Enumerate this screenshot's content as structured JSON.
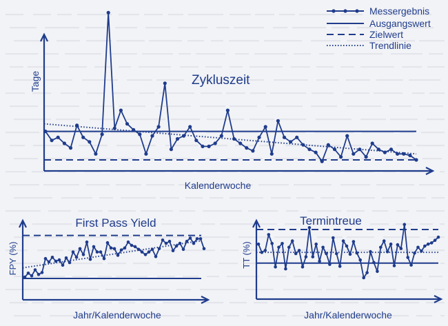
{
  "colors": {
    "ink": "#1f3c8c",
    "paper": "#f2f3f6",
    "bleed": "#c9ccd6"
  },
  "legend": {
    "items": [
      {
        "label": "Messergebnis",
        "style": "line-dots"
      },
      {
        "label": "Ausgangswert",
        "style": "solid"
      },
      {
        "label": "Zielwert",
        "style": "dashed"
      },
      {
        "label": "Trendlinie",
        "style": "dotted"
      }
    ]
  },
  "chart_data": [
    {
      "type": "line",
      "title": "Zykluszeit",
      "xlabel": "Kalenderwoche",
      "ylabel": "Tage",
      "ylim": [
        0,
        10
      ],
      "series": [
        {
          "name": "Messergebnis",
          "values": [
            1.9,
            1.3,
            1.5,
            1.1,
            0.8,
            2.3,
            1.5,
            1.2,
            0.4,
            1.7,
            9.8,
            2.1,
            3.3,
            2.4,
            2.0,
            1.7,
            0.4,
            1.6,
            2.2,
            5.1,
            0.7,
            1.4,
            1.6,
            2.2,
            1.3,
            0.9,
            0.9,
            1.1,
            1.6,
            3.3,
            1.4,
            1.1,
            0.8,
            0.6,
            1.5,
            2.2,
            0.4,
            2.6,
            1.5,
            1.2,
            1.5,
            1.0,
            0.7,
            0.5,
            -0.1,
            1.0,
            0.7,
            0.2,
            1.6,
            0.4,
            0.7,
            0.2,
            1.1,
            0.7,
            0.5,
            0.7,
            0.4,
            0.4,
            0.3,
            0.0
          ]
        },
        {
          "name": "Ausgangswert",
          "values": [
            1.9,
            1.9
          ]
        },
        {
          "name": "Zielwert",
          "values": [
            0.0,
            0.0
          ]
        },
        {
          "name": "Trendlinie",
          "values": [
            2.4,
            0.4
          ]
        }
      ]
    },
    {
      "type": "line",
      "title": "First Pass Yield",
      "xlabel": "Jahr/Kalenderwoche",
      "ylabel": "FPY (%)",
      "ylim": [
        0,
        10
      ],
      "series": [
        {
          "name": "Messergebnis",
          "values": [
            0.2,
            0.8,
            0.4,
            1.3,
            0.6,
            0.9,
            3.0,
            2.5,
            3.2,
            2.6,
            2.8,
            2.0,
            3.1,
            2.4,
            4.0,
            3.2,
            4.5,
            3.6,
            5.5,
            2.9,
            4.8,
            4.0,
            4.0,
            3.0,
            5.4,
            4.6,
            4.5,
            3.5,
            4.3,
            4.6,
            5.5,
            5.0,
            4.8,
            4.4,
            4.0,
            3.6,
            4.0,
            4.4,
            3.3,
            4.5,
            5.8,
            5.3,
            5.6,
            4.2,
            4.9,
            5.3,
            4.4,
            5.6,
            6.1,
            5.3,
            6.0,
            6.0,
            4.5
          ]
        },
        {
          "name": "Ausgangswert",
          "values": [
            0.0,
            0.0
          ]
        },
        {
          "name": "Zielwert",
          "values": [
            6.5,
            6.5
          ]
        },
        {
          "name": "Trendlinie",
          "values": [
            1.6,
            5.7
          ]
        }
      ]
    },
    {
      "type": "line",
      "title": "Termintreue",
      "xlabel": "Jahr/Kalenderwoche",
      "ylabel": "TT (%)",
      "ylim": [
        0,
        10
      ],
      "series": [
        {
          "name": "Messergebnis",
          "values": [
            6.5,
            5.2,
            5.5,
            8.0,
            6.6,
            2.9,
            6.0,
            6.6,
            2.6,
            6.0,
            7.0,
            5.0,
            5.5,
            2.9,
            4.5,
            9.1,
            4.5,
            6.5,
            3.8,
            6.0,
            5.0,
            3.3,
            7.5,
            5.0,
            3.0,
            7.0,
            6.2,
            4.9,
            6.9,
            5.1,
            4.0,
            1.2,
            2.0,
            5.3,
            3.6,
            2.2,
            6.0,
            7.0,
            5.3,
            6.5,
            3.1,
            6.4,
            5.8,
            9.6,
            4.4,
            3.2,
            5.1,
            6.0,
            5.4,
            6.2,
            6.5,
            6.7,
            7.1,
            7.6
          ]
        },
        {
          "name": "Ausgangswert",
          "values": [
            3.5,
            3.5
          ]
        },
        {
          "name": "Zielwert",
          "values": [
            8.8,
            8.8
          ]
        },
        {
          "name": "Trendlinie",
          "values": [
            5.2,
            5.2
          ]
        }
      ]
    }
  ]
}
